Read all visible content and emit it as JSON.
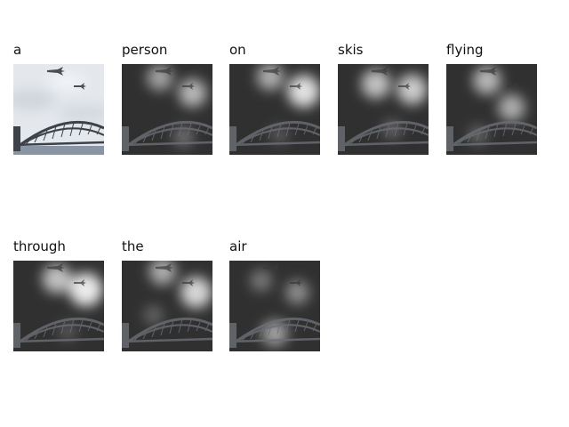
{
  "caption_words": [
    "a",
    "person",
    "on",
    "skis",
    "flying",
    "through",
    "the",
    "air"
  ],
  "panels": [
    {
      "word": "a",
      "kind": "original"
    },
    {
      "word": "person",
      "kind": "attention",
      "focus": [
        [
          0.42,
          0.15,
          0.55
        ],
        [
          0.78,
          0.32,
          0.65
        ],
        [
          0.68,
          0.8,
          0.3
        ]
      ]
    },
    {
      "word": "on",
      "kind": "attention",
      "focus": [
        [
          0.45,
          0.14,
          0.6
        ],
        [
          0.82,
          0.3,
          0.85
        ],
        [
          0.55,
          0.78,
          0.2
        ]
      ]
    },
    {
      "word": "skis",
      "kind": "attention",
      "focus": [
        [
          0.42,
          0.22,
          0.7
        ],
        [
          0.82,
          0.28,
          0.75
        ],
        [
          0.6,
          0.72,
          0.25
        ]
      ]
    },
    {
      "word": "flying",
      "kind": "attention",
      "focus": [
        [
          0.45,
          0.18,
          0.65
        ],
        [
          0.72,
          0.48,
          0.6
        ],
        [
          0.35,
          0.78,
          0.25
        ]
      ]
    },
    {
      "word": "through",
      "kind": "attention",
      "focus": [
        [
          0.48,
          0.2,
          0.7
        ],
        [
          0.8,
          0.32,
          0.9
        ],
        [
          0.6,
          0.78,
          0.2
        ]
      ]
    },
    {
      "word": "the",
      "kind": "attention",
      "focus": [
        [
          0.45,
          0.12,
          0.6
        ],
        [
          0.82,
          0.35,
          0.8
        ],
        [
          0.35,
          0.6,
          0.25
        ]
      ]
    },
    {
      "word": "air",
      "kind": "attention",
      "focus": [
        [
          0.35,
          0.22,
          0.35
        ],
        [
          0.75,
          0.35,
          0.45
        ],
        [
          0.5,
          0.8,
          0.55
        ]
      ]
    }
  ],
  "colors": {
    "sky": "#e4e8ec",
    "bridge": "#3d4248",
    "water": "#8a95a3",
    "attention_dark": "#1b1b1b",
    "attention_light": "#ffffff"
  }
}
